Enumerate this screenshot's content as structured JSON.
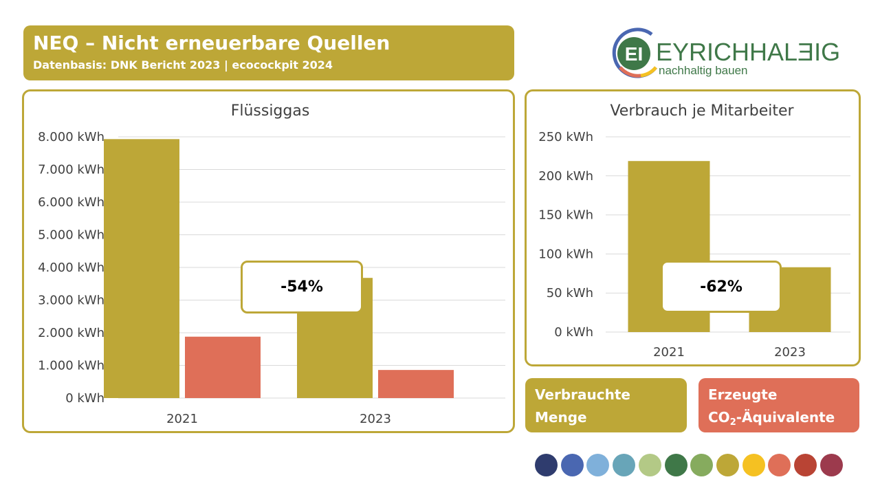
{
  "header": {
    "title": "NEQ – Nicht erneuerbare Quellen",
    "subtitle": "Datenbasis: DNK Bericht 2023 | ecocockpit 2024"
  },
  "logo": {
    "icon": "eh-monogram-icon",
    "brand": "EYRICHHALBIG",
    "brand_display": "EYRICHHALƎIG",
    "tagline": "nachhaltig bauen"
  },
  "colors": {
    "accent": "#bda737",
    "consumed": "#bda737",
    "co2": "#df6f58",
    "grid": "#d9d9d9"
  },
  "chart_data": [
    {
      "type": "bar",
      "title": "Flüssiggas",
      "categories": [
        "2021",
        "2023"
      ],
      "series": [
        {
          "name": "Verbrauchte Menge",
          "values": [
            7930,
            3680
          ],
          "color": "#bda737"
        },
        {
          "name": "Erzeugte CO2-Äquivalente",
          "values": [
            1880,
            860
          ],
          "color": "#df6f58"
        }
      ],
      "ylim": [
        0,
        8000
      ],
      "yticks": [
        0,
        1000,
        2000,
        3000,
        4000,
        5000,
        6000,
        7000,
        8000
      ],
      "ytick_labels": [
        "0 kWh",
        "1.000 kWh",
        "2.000 kWh",
        "3.000 kWh",
        "4.000 kWh",
        "5.000 kWh",
        "6.000 kWh",
        "7.000 kWh",
        "8.000 kWh"
      ],
      "grid": true,
      "annotation": "-54%"
    },
    {
      "type": "bar",
      "title": "Verbrauch je Mitarbeiter",
      "categories": [
        "2021",
        "2023"
      ],
      "series": [
        {
          "name": "Verbrauchte Menge",
          "values": [
            219,
            83
          ],
          "color": "#bda737"
        }
      ],
      "ylim": [
        0,
        250
      ],
      "yticks": [
        0,
        50,
        100,
        150,
        200,
        250
      ],
      "ytick_labels": [
        "0 kWh",
        "50 kWh",
        "100 kWh",
        "150 kWh",
        "200 kWh",
        "250 kWh"
      ],
      "grid": true,
      "annotation": "-62%"
    }
  ],
  "legend": {
    "consumed_line1": "Verbrauchte",
    "consumed_line2": "Menge",
    "co2_line1": "Erzeugte",
    "co2_prefix": "CO",
    "co2_sub": "2",
    "co2_suffix": "-Äquivalente"
  },
  "palette": [
    "#2f3c6e",
    "#4a67b1",
    "#7fb0da",
    "#68a5b8",
    "#b3c986",
    "#3f7848",
    "#86ab5e",
    "#bda737",
    "#f5c122",
    "#df6f58",
    "#b94434",
    "#9c3a4d"
  ]
}
